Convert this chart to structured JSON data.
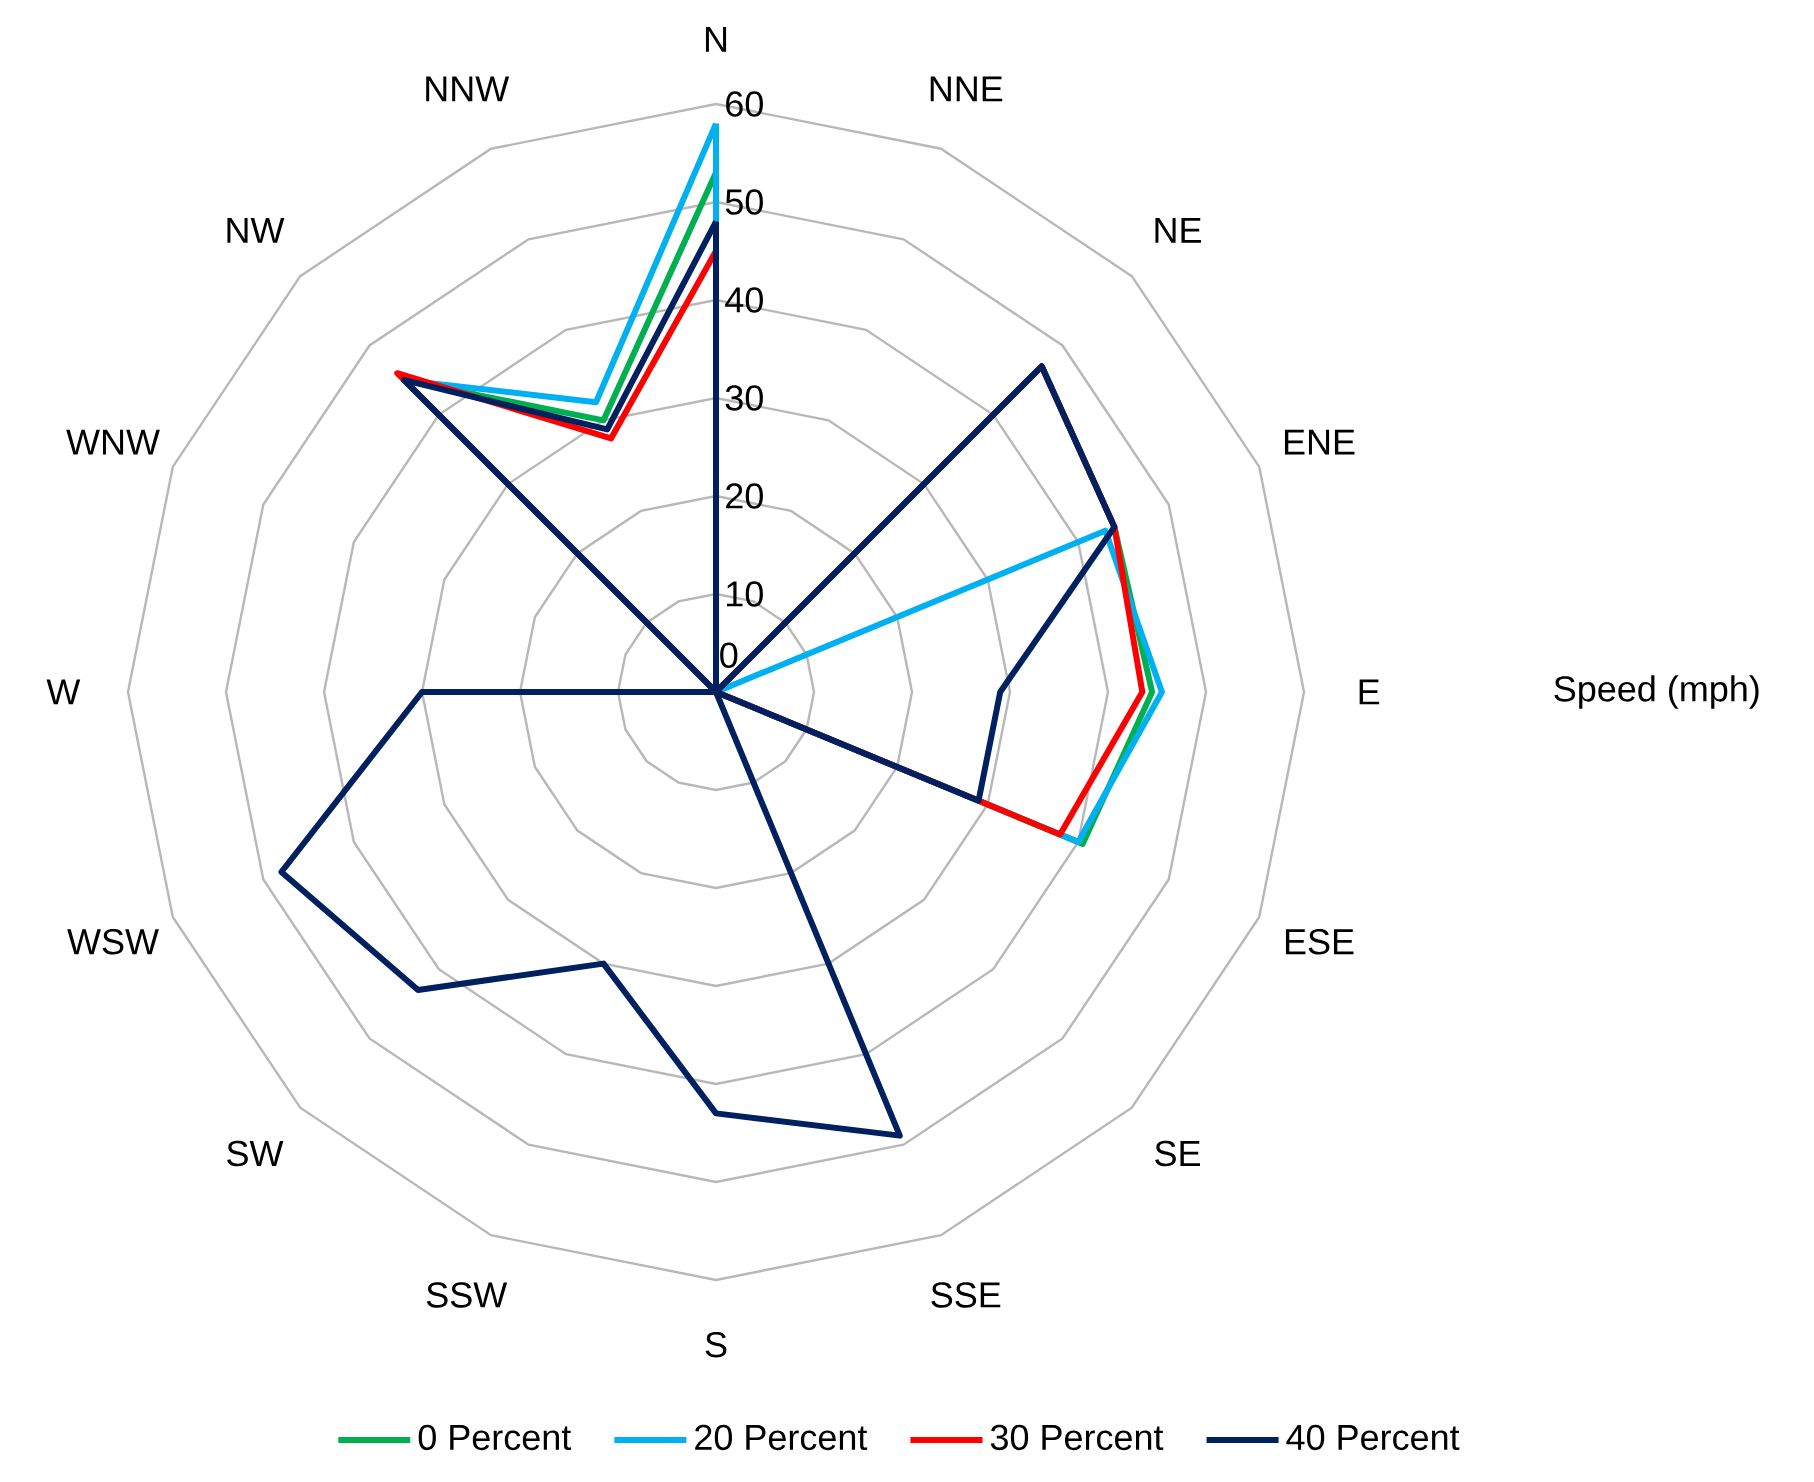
{
  "chart_data": {
    "type": "radar",
    "ylabel": "Speed (mph)",
    "categories": [
      "N",
      "NNE",
      "NE",
      "ENE",
      "E",
      "ESE",
      "SE",
      "SSE",
      "S",
      "SSW",
      "SW",
      "WSW",
      "W",
      "WNW",
      "NW",
      "NNW"
    ],
    "series": [
      {
        "name": "0 Percent",
        "color": "#00b050",
        "values": [
          53,
          0,
          47,
          44,
          44.5,
          40.5,
          0,
          0,
          0,
          0,
          0,
          0,
          0,
          0,
          45,
          30
        ]
      },
      {
        "name": "20 Percent",
        "color": "#00b0f0",
        "values": [
          58,
          0,
          0,
          43,
          45.5,
          40,
          0,
          0,
          0,
          0,
          0,
          0,
          0,
          0,
          45,
          32
        ]
      },
      {
        "name": "30 Percent",
        "color": "#ff0000",
        "values": [
          45,
          0,
          47,
          44,
          43.5,
          38,
          0,
          0,
          0,
          0,
          0,
          0,
          0,
          0,
          46,
          28
        ]
      },
      {
        "name": "40 Percent",
        "color": "#002060",
        "values": [
          48,
          0,
          47,
          44,
          29,
          29,
          0,
          49,
          43,
          30,
          43,
          48,
          30,
          0,
          45,
          29
        ]
      }
    ],
    "ylim": [
      0,
      60
    ],
    "yticks": [
      0,
      10,
      20,
      30,
      40,
      50,
      60
    ],
    "grid": true,
    "legend": "bottom",
    "marker": "none",
    "line_style": "solid"
  }
}
